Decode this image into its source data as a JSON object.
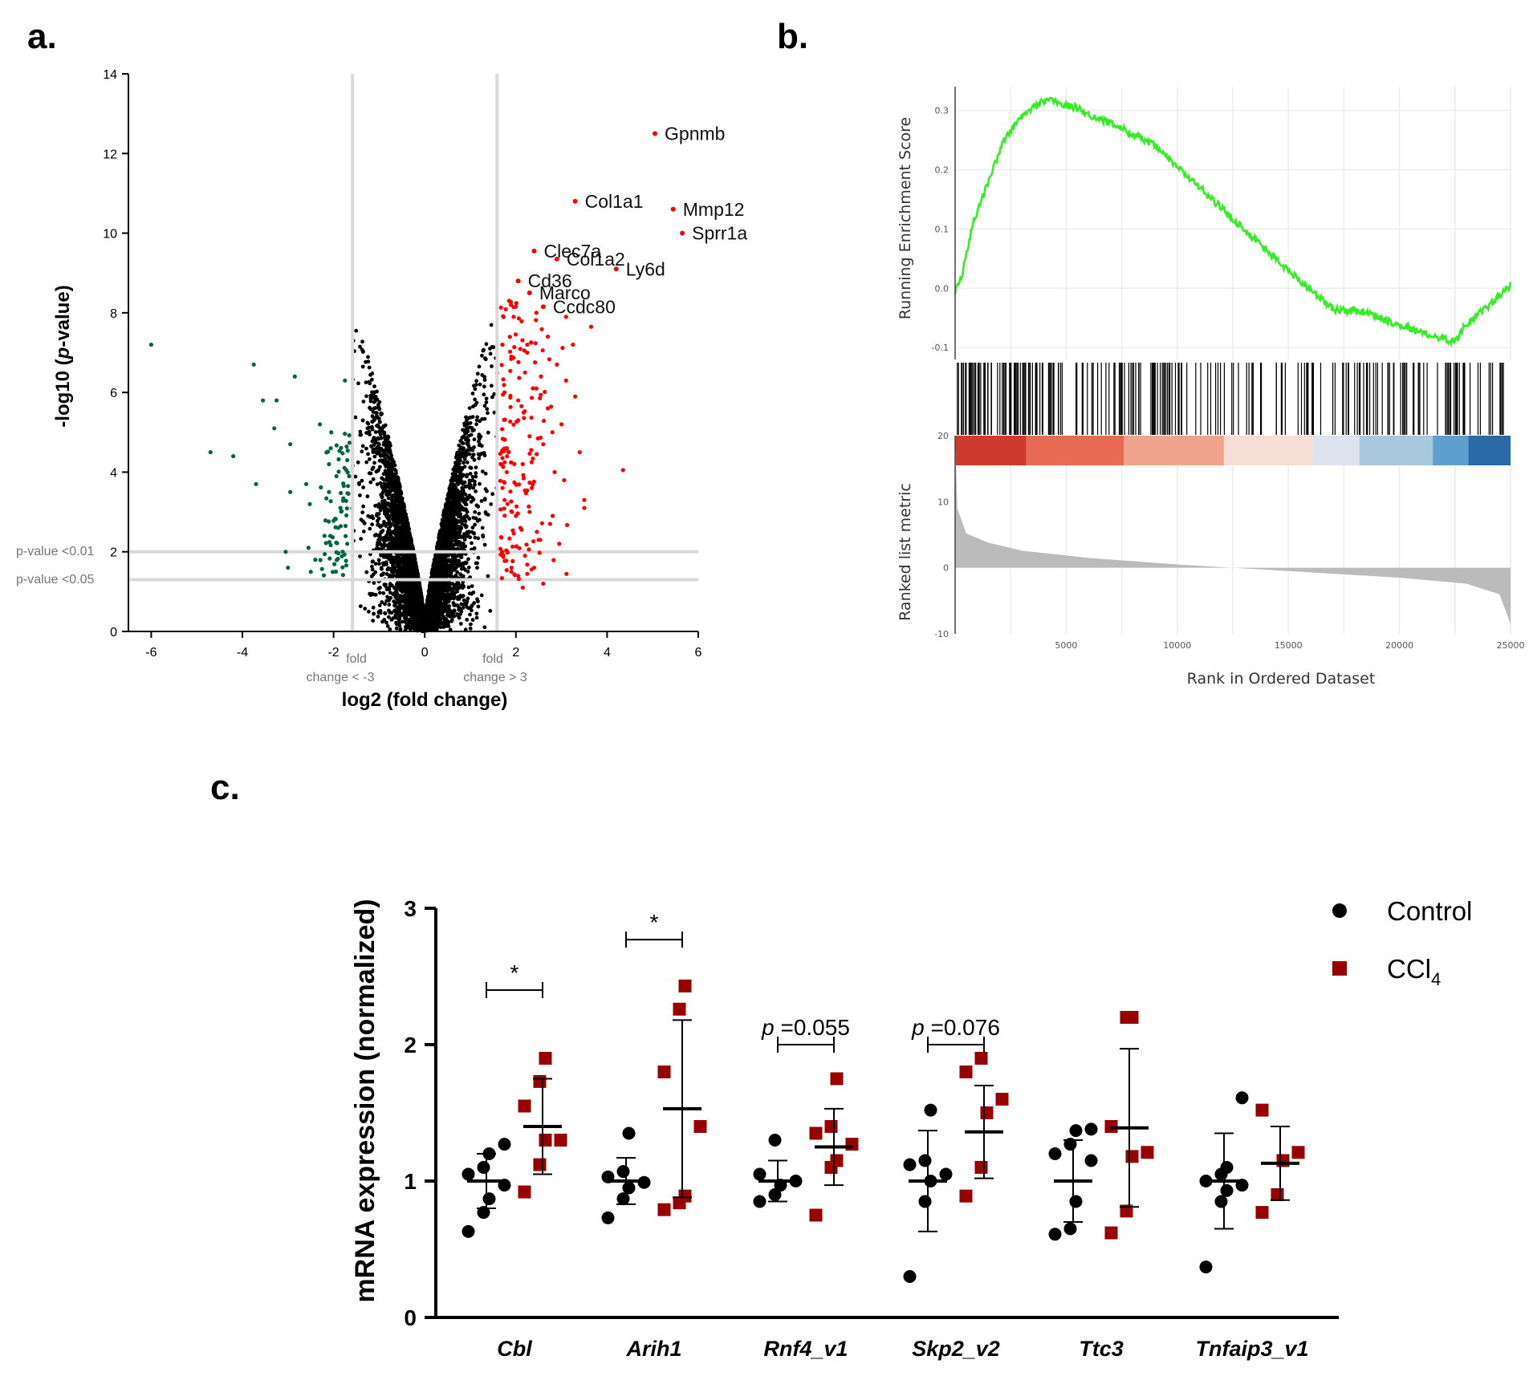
{
  "chart_data": [
    {
      "panel": "a.",
      "type": "scatter",
      "title": "",
      "xlabel": "log2 (fold change)",
      "ylabel_prefix": "-log10 (",
      "ylabel_italic": "p",
      "ylabel_suffix": "-value)",
      "xlim": [
        -6.5,
        6
      ],
      "ylim": [
        0,
        14
      ],
      "xticks": [
        -6,
        -4,
        -2,
        0,
        2,
        4,
        6
      ],
      "yticks": [
        0,
        2,
        4,
        6,
        8,
        10,
        12,
        14
      ],
      "vlines": [
        -1.585,
        1.585
      ],
      "hlines": [
        2,
        1.3
      ],
      "threshold_labels": {
        "fold_left": [
          "fold",
          "change < -3"
        ],
        "fold_right": [
          "fold",
          "change > 3"
        ],
        "p01": "p-value <0.01",
        "p05": "p-value <0.05"
      },
      "series_colors": {
        "up": "#ff0000",
        "down": "#006644",
        "ns": "#000000"
      },
      "labeled_points": [
        {
          "label": "Gpnmb",
          "x": 5.05,
          "y": 12.5
        },
        {
          "label": "Col1a1",
          "x": 3.3,
          "y": 10.8
        },
        {
          "label": "Mmp12",
          "x": 5.45,
          "y": 10.6
        },
        {
          "label": "Sprr1a",
          "x": 5.65,
          "y": 10.0
        },
        {
          "label": "Clec7a",
          "x": 2.4,
          "y": 9.55
        },
        {
          "label": "Col1a2",
          "x": 2.9,
          "y": 9.35
        },
        {
          "label": "Ly6d",
          "x": 4.2,
          "y": 9.1
        },
        {
          "label": "Cd36",
          "x": 2.05,
          "y": 8.8
        },
        {
          "label": "Marco",
          "x": 2.3,
          "y": 8.5
        },
        {
          "label": "Ccdc80",
          "x": 2.6,
          "y": 8.15
        }
      ],
      "up_points": [
        [
          3.65,
          7.65
        ],
        [
          2.7,
          7.4
        ],
        [
          3.25,
          7.2
        ],
        [
          2.9,
          6.7
        ],
        [
          2.2,
          6.5
        ],
        [
          3.1,
          6.3
        ],
        [
          2.45,
          6.1
        ],
        [
          3.3,
          5.9
        ],
        [
          2.05,
          5.8
        ],
        [
          2.7,
          5.6
        ],
        [
          3.0,
          5.2
        ],
        [
          2.3,
          4.9
        ],
        [
          2.6,
          4.7
        ],
        [
          3.4,
          4.5
        ],
        [
          2.15,
          4.2
        ],
        [
          2.85,
          4.0
        ],
        [
          4.35,
          4.05
        ],
        [
          3.5,
          3.3
        ],
        [
          3.5,
          3.1
        ],
        [
          2.3,
          3.0
        ],
        [
          2.75,
          2.7
        ],
        [
          2.1,
          2.6
        ],
        [
          2.5,
          2.3
        ],
        [
          2.95,
          2.2
        ],
        [
          2.2,
          1.9
        ],
        [
          2.4,
          1.6
        ],
        [
          1.85,
          8.3
        ],
        [
          1.95,
          7.9
        ],
        [
          2.25,
          7.2
        ],
        [
          1.9,
          6.9
        ],
        [
          2.55,
          6.4
        ],
        [
          1.75,
          6.0
        ],
        [
          2.05,
          5.3
        ],
        [
          1.8,
          4.6
        ],
        [
          2.35,
          3.6
        ],
        [
          1.75,
          3.3
        ],
        [
          2.0,
          2.9
        ],
        [
          1.7,
          2.0
        ],
        [
          1.9,
          1.5
        ],
        [
          2.6,
          1.2
        ],
        [
          2.15,
          1.1
        ],
        [
          1.8,
          4.0
        ],
        [
          2.45,
          8.0
        ],
        [
          3.1,
          7.9
        ],
        [
          2.8,
          5.0
        ]
      ],
      "down_points": [
        [
          -6.0,
          7.2
        ],
        [
          -3.75,
          6.7
        ],
        [
          -2.85,
          6.4
        ],
        [
          -4.2,
          4.4
        ],
        [
          -4.7,
          4.5
        ],
        [
          -3.7,
          3.7
        ],
        [
          -3.25,
          5.8
        ],
        [
          -3.55,
          5.8
        ],
        [
          -3.3,
          5.1
        ],
        [
          -2.95,
          4.7
        ],
        [
          -2.95,
          3.5
        ],
        [
          -2.6,
          3.7
        ],
        [
          -3.05,
          2.0
        ],
        [
          -3.0,
          1.6
        ],
        [
          -2.55,
          2.1
        ],
        [
          -2.4,
          1.8
        ],
        [
          -2.3,
          5.2
        ],
        [
          -2.1,
          4.2
        ],
        [
          -2.1,
          3.5
        ],
        [
          -1.9,
          2.6
        ],
        [
          -1.75,
          6.3
        ],
        [
          -1.7,
          4.3
        ],
        [
          -1.85,
          3.1
        ],
        [
          -2.05,
          5.0
        ],
        [
          -2.2,
          2.4
        ],
        [
          -1.95,
          1.5
        ],
        [
          -1.8,
          2.0
        ],
        [
          -1.7,
          2.2
        ]
      ],
      "note": "Grey (not-significant) cloud of points is generated procedurally by the drawing script."
    },
    {
      "panel": "b.",
      "type": "line",
      "title": "",
      "xlabel": "Rank in Ordered Dataset",
      "ylabel_top": "Running Enrichment Score",
      "ylabel_bottom": "Ranked list metric",
      "xlim": [
        0,
        25000
      ],
      "ylim_top": [
        -0.12,
        0.34
      ],
      "ylim_bottom": [
        -10,
        20
      ],
      "xticks": [
        5000,
        10000,
        15000,
        20000,
        25000
      ],
      "xtick_labels": [
        "5000",
        "10000",
        "15000",
        "20000",
        "25000"
      ],
      "yticks_top": [
        0.3,
        0.2,
        0.1,
        0.0,
        -0.1
      ],
      "ytick_labels_top": [
        "0.3",
        "0.2",
        "0.1",
        "0.0",
        "-0.1"
      ],
      "yticks_bottom": [
        20,
        10,
        0,
        -10
      ],
      "ytick_labels_bottom": [
        "20",
        "10",
        "0",
        "-10"
      ],
      "es_curve": {
        "x": [
          0,
          300,
          800,
          1500,
          2200,
          3000,
          3700,
          4200,
          4800,
          5400,
          6200,
          7500,
          9000,
          11000,
          13000,
          15000,
          17000,
          18500,
          19500,
          21000,
          22000,
          22500,
          23000,
          24000,
          25000
        ],
        "y": [
          -0.005,
          0.02,
          0.11,
          0.18,
          0.25,
          0.29,
          0.31,
          0.32,
          0.31,
          0.305,
          0.29,
          0.27,
          0.24,
          0.17,
          0.1,
          0.03,
          -0.035,
          -0.04,
          -0.055,
          -0.075,
          -0.085,
          -0.09,
          -0.06,
          -0.03,
          0.005
        ],
        "color": "#33ee22"
      },
      "heat_band": [
        {
          "from": 0,
          "to": 3200,
          "color": "#cf3a2d"
        },
        {
          "from": 3200,
          "to": 7600,
          "color": "#e86a52"
        },
        {
          "from": 7600,
          "to": 12100,
          "color": "#f0a48d"
        },
        {
          "from": 12100,
          "to": 16100,
          "color": "#f6ddd5"
        },
        {
          "from": 16100,
          "to": 18200,
          "color": "#dde3ef"
        },
        {
          "from": 18200,
          "to": 21500,
          "color": "#a9c8de"
        },
        {
          "from": 21500,
          "to": 23100,
          "color": "#5f9fd0"
        },
        {
          "from": 23100,
          "to": 25000,
          "color": "#2a6aa8"
        }
      ],
      "metric_curve": {
        "x": [
          0,
          100,
          500,
          1500,
          3000,
          6000,
          10000,
          12500,
          15000,
          20000,
          23000,
          24500,
          25000
        ],
        "y": [
          20,
          9,
          5.2,
          3.8,
          2.6,
          1.5,
          0.5,
          0,
          -0.5,
          -1.5,
          -2.4,
          -4,
          -8.5
        ],
        "color": "#bbbbbb"
      },
      "hit_clusters": [
        [
          0,
          1400,
          24
        ],
        [
          1400,
          2800,
          20
        ],
        [
          2800,
          4800,
          30
        ],
        [
          4800,
          6500,
          12
        ],
        [
          6500,
          8200,
          16
        ],
        [
          8200,
          9900,
          20
        ],
        [
          9900,
          11200,
          8
        ],
        [
          11200,
          12100,
          5
        ],
        [
          12100,
          13500,
          9
        ],
        [
          13500,
          14500,
          4
        ],
        [
          14500,
          15900,
          10
        ],
        [
          15900,
          17600,
          8
        ],
        [
          17600,
          19800,
          24
        ],
        [
          19800,
          21600,
          14
        ],
        [
          21600,
          23300,
          20
        ],
        [
          23300,
          24000,
          2
        ],
        [
          24000,
          24900,
          7
        ]
      ]
    },
    {
      "panel": "c.",
      "type": "scatter",
      "title": "",
      "xlabel": "",
      "ylabel": "mRNA expression (normalized)",
      "ylim": [
        0,
        3
      ],
      "yticks": [
        0,
        1,
        2,
        3
      ],
      "categories": [
        "Cbl",
        "Arih1",
        "Rnf4_v1",
        "Skp2_v2",
        "Ttc3",
        "Tnfaip3_v1"
      ],
      "legend": [
        {
          "name": "Control",
          "marker": "circle",
          "color": "#000000"
        },
        {
          "name": "CCl",
          "subscript": "4",
          "marker": "square",
          "color": "#990000"
        }
      ],
      "series": [
        {
          "name": "Control",
          "mean": [
            1.0,
            1.0,
            1.0,
            1.0,
            1.0,
            1.0
          ],
          "sd": [
            0.2,
            0.17,
            0.15,
            0.37,
            0.3,
            0.35
          ],
          "points": [
            [
              0.63,
              0.77,
              0.87,
              0.97,
              1.05,
              1.1,
              1.2,
              1.27
            ],
            [
              0.73,
              0.87,
              0.95,
              0.99,
              1.03,
              1.07,
              1.35
            ],
            [
              0.85,
              0.9,
              0.97,
              1.0,
              1.05,
              1.3
            ],
            [
              0.3,
              0.85,
              1.0,
              1.05,
              1.12,
              1.15,
              1.52
            ],
            [
              0.61,
              0.65,
              0.85,
              1.15,
              1.2,
              1.27,
              1.37,
              1.38
            ],
            [
              0.37,
              0.85,
              0.93,
              0.97,
              1.0,
              1.05,
              1.1,
              1.61
            ]
          ]
        },
        {
          "name": "CCl4",
          "mean": [
            1.4,
            1.53,
            1.25,
            1.36,
            1.39,
            1.13
          ],
          "sd": [
            0.35,
            0.65,
            0.28,
            0.34,
            0.58,
            0.27
          ],
          "points": [
            [
              0.92,
              1.12,
              1.3,
              1.3,
              1.55,
              1.73,
              1.9
            ],
            [
              0.79,
              0.84,
              0.89,
              1.4,
              1.8,
              2.26,
              2.43
            ],
            [
              0.75,
              1.1,
              1.15,
              1.27,
              1.35,
              1.4,
              1.75
            ],
            [
              0.89,
              1.1,
              1.5,
              1.6,
              1.8,
              1.9
            ],
            [
              0.62,
              0.78,
              1.18,
              1.21,
              1.4,
              2.2,
              2.2
            ],
            [
              0.77,
              0.9,
              1.15,
              1.21,
              1.52
            ]
          ]
        }
      ],
      "significance": [
        {
          "category": "Cbl",
          "text": "*",
          "y": 2.4
        },
        {
          "category": "Arih1",
          "text": "*",
          "y": 2.77
        },
        {
          "category": "Rnf4_v1",
          "text_italic": "p",
          "text": " =0.055",
          "y": 2.0
        },
        {
          "category": "Skp2_v2",
          "text_italic": "p",
          "text": " =0.076",
          "y": 2.0
        }
      ]
    }
  ]
}
